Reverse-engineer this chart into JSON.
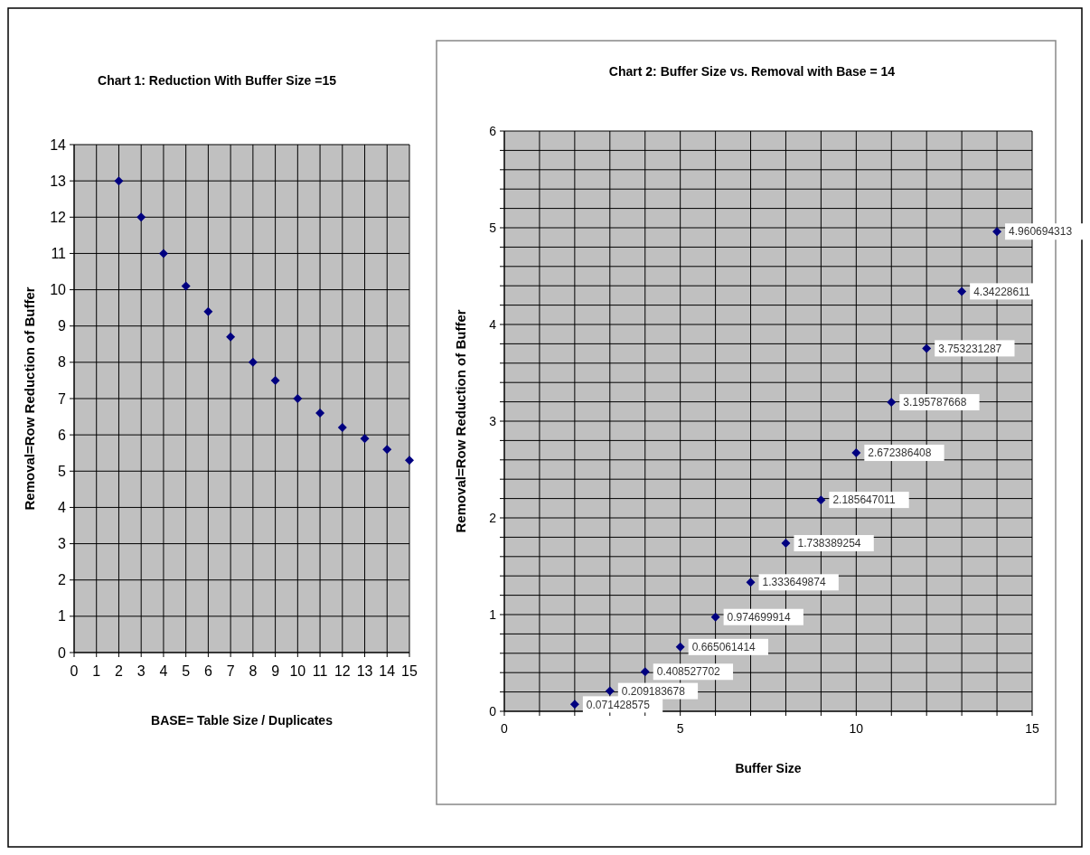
{
  "chart_data": [
    {
      "type": "scatter",
      "title": "Chart 1: Reduction With Buffer Size =15",
      "xlabel": "BASE= Table Size / Duplicates",
      "ylabel": "Removal=Row Reduction of Buffer",
      "x": [
        2,
        3,
        4,
        5,
        6,
        7,
        8,
        9,
        10,
        11,
        12,
        13,
        14,
        15
      ],
      "values": [
        13,
        12,
        11,
        10.1,
        9.4,
        8.7,
        8,
        7.5,
        7,
        6.6,
        6.2,
        5.9,
        5.6,
        5.3
      ],
      "color": "#000080",
      "marker": "diamond",
      "grid": true,
      "xlim": [
        0,
        15
      ],
      "xticks": [
        0,
        1,
        2,
        3,
        4,
        5,
        6,
        7,
        8,
        9,
        10,
        11,
        12,
        13,
        14,
        15
      ],
      "ylim": [
        0,
        14
      ],
      "yticks": [
        0,
        1,
        2,
        3,
        4,
        5,
        6,
        7,
        8,
        9,
        10,
        11,
        12,
        13,
        14
      ]
    },
    {
      "type": "scatter",
      "title": "Chart 2: Buffer Size vs. Removal with Base = 14",
      "xlabel": "Buffer Size",
      "ylabel": "Removal=Row Reduction of Buffer",
      "x": [
        2,
        3,
        4,
        5,
        6,
        7,
        8,
        9,
        10,
        11,
        12,
        13,
        14
      ],
      "values": [
        0.071428575,
        0.209183678,
        0.408527702,
        0.665061414,
        0.974699914,
        1.333649874,
        1.738389254,
        2.185647011,
        2.672386408,
        3.195787668,
        3.753231287,
        4.34228611,
        4.960694313
      ],
      "color": "#000080",
      "marker": "diamond",
      "grid": true,
      "data_labels": true,
      "xlim": [
        0,
        15
      ],
      "xticks": [
        0,
        {
          "value": 1,
          "label": null
        },
        {
          "value": 2,
          "label": null
        },
        {
          "value": 3,
          "label": null
        },
        {
          "value": 4,
          "label": null
        },
        5,
        {
          "value": 6,
          "label": null
        },
        {
          "value": 7,
          "label": null
        },
        {
          "value": 8,
          "label": null
        },
        {
          "value": 9,
          "label": null
        },
        10,
        {
          "value": 11,
          "label": null
        },
        {
          "value": 12,
          "label": null
        },
        {
          "value": 13,
          "label": null
        },
        {
          "value": 14,
          "label": null
        },
        15
      ],
      "ylim": [
        0,
        6
      ],
      "yticks": [
        0,
        {
          "value": 0.2,
          "label": null
        },
        {
          "value": 0.4,
          "label": null
        },
        {
          "value": 0.6,
          "label": null
        },
        {
          "value": 0.8,
          "label": null
        },
        1,
        {
          "value": 1.2,
          "label": null
        },
        {
          "value": 1.4,
          "label": null
        },
        {
          "value": 1.6,
          "label": null
        },
        {
          "value": 1.8,
          "label": null
        },
        2,
        {
          "value": 2.2,
          "label": null
        },
        {
          "value": 2.4,
          "label": null
        },
        {
          "value": 2.6,
          "label": null
        },
        {
          "value": 2.8,
          "label": null
        },
        3,
        {
          "value": 3.2,
          "label": null
        },
        {
          "value": 3.4,
          "label": null
        },
        {
          "value": 3.6,
          "label": null
        },
        {
          "value": 3.8,
          "label": null
        },
        4,
        {
          "value": 4.2,
          "label": null
        },
        {
          "value": 4.4,
          "label": null
        },
        {
          "value": 4.6,
          "label": null
        },
        {
          "value": 4.8,
          "label": null
        },
        5,
        {
          "value": 5.2,
          "label": null
        },
        {
          "value": 5.4,
          "label": null
        },
        {
          "value": 5.6,
          "label": null
        },
        {
          "value": 5.8,
          "label": null
        },
        6
      ]
    }
  ]
}
